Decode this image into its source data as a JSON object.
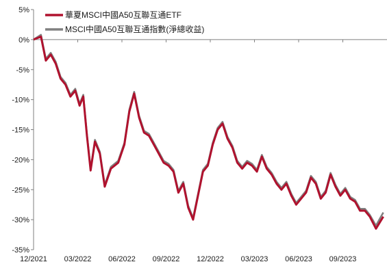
{
  "chart_data": {
    "type": "line",
    "title": "",
    "xlabel": "",
    "ylabel": "",
    "ylim": [
      -35,
      5
    ],
    "y_ticks": [
      5,
      0,
      -5,
      -10,
      -15,
      -20,
      -25,
      -30,
      -35
    ],
    "y_tick_labels": [
      "5%",
      "0%",
      "-5%",
      "-10%",
      "-15%",
      "-20%",
      "-25%",
      "-30%",
      "-35%"
    ],
    "x_tick_labels": [
      "12/2021",
      "03/2022",
      "06/2022",
      "09/2022",
      "12/2022",
      "03/2023",
      "06/2023",
      "09/2023"
    ],
    "x_range_months": [
      "12/2021",
      "11/2023"
    ],
    "grid": false,
    "legend_position": "top-left",
    "series": [
      {
        "name": "華夏MSCI中國A50互聯互通ETF",
        "color": "#b0122e",
        "x": [
          "12/2021",
          "12/2021",
          "12/2021",
          "01/2022",
          "01/2022",
          "01/2022",
          "02/2022",
          "02/2022",
          "02/2022",
          "03/2022",
          "03/2022",
          "03/2022",
          "03/2022",
          "04/2022",
          "04/2022",
          "04/2022",
          "05/2022",
          "05/2022",
          "06/2022",
          "06/2022",
          "06/2022",
          "07/2022",
          "07/2022",
          "07/2022",
          "08/2022",
          "08/2022",
          "08/2022",
          "09/2022",
          "09/2022",
          "09/2022",
          "10/2022",
          "10/2022",
          "10/2022",
          "11/2022",
          "11/2022",
          "11/2022",
          "12/2022",
          "12/2022",
          "12/2022",
          "01/2023",
          "01/2023",
          "01/2023",
          "02/2023",
          "02/2023",
          "02/2023",
          "03/2023",
          "03/2023",
          "03/2023",
          "04/2023",
          "04/2023",
          "04/2023",
          "05/2023",
          "05/2023",
          "05/2023",
          "06/2023",
          "06/2023",
          "06/2023",
          "07/2023",
          "07/2023",
          "07/2023",
          "08/2023",
          "08/2023",
          "08/2023",
          "09/2023",
          "09/2023",
          "09/2023",
          "10/2023",
          "10/2023",
          "10/2023",
          "11/2023",
          "11/2023"
        ],
        "values": [
          0.0,
          0.5,
          -3.5,
          -2.5,
          -4.0,
          -6.5,
          -7.5,
          -9.5,
          -8.5,
          -11.0,
          -9.5,
          -16.0,
          -21.8,
          -17.0,
          -19.0,
          -24.5,
          -21.5,
          -20.5,
          -17.5,
          -12.0,
          -9.0,
          -13.0,
          -15.5,
          -16.0,
          -17.5,
          -19.0,
          -20.5,
          -21.0,
          -22.0,
          -25.5,
          -24.0,
          -28.0,
          -30.0,
          -26.0,
          -22.0,
          -21.0,
          -17.5,
          -15.0,
          -14.0,
          -16.5,
          -18.0,
          -20.5,
          -21.5,
          -20.5,
          -21.0,
          -22.0,
          -19.5,
          -21.5,
          -22.5,
          -24.0,
          -25.0,
          -24.0,
          -26.0,
          -27.5,
          -26.5,
          -25.5,
          -23.0,
          -24.0,
          -26.5,
          -25.5,
          -22.5,
          -24.5,
          -26.0,
          -25.0,
          -26.5,
          -27.0,
          -28.5,
          -28.5,
          -29.5,
          -31.5,
          -29.5
        ]
      },
      {
        "name": "MSCI中國A50互聯互通指數(淨總收益)",
        "color": "#808080",
        "x": [
          "12/2021",
          "12/2021",
          "12/2021",
          "01/2022",
          "01/2022",
          "01/2022",
          "02/2022",
          "02/2022",
          "02/2022",
          "03/2022",
          "03/2022",
          "03/2022",
          "03/2022",
          "04/2022",
          "04/2022",
          "04/2022",
          "05/2022",
          "05/2022",
          "06/2022",
          "06/2022",
          "06/2022",
          "07/2022",
          "07/2022",
          "07/2022",
          "08/2022",
          "08/2022",
          "08/2022",
          "09/2022",
          "09/2022",
          "09/2022",
          "10/2022",
          "10/2022",
          "10/2022",
          "11/2022",
          "11/2022",
          "11/2022",
          "12/2022",
          "12/2022",
          "12/2022",
          "01/2023",
          "01/2023",
          "01/2023",
          "02/2023",
          "02/2023",
          "02/2023",
          "03/2023",
          "03/2023",
          "03/2023",
          "04/2023",
          "04/2023",
          "04/2023",
          "05/2023",
          "05/2023",
          "05/2023",
          "06/2023",
          "06/2023",
          "06/2023",
          "07/2023",
          "07/2023",
          "07/2023",
          "08/2023",
          "08/2023",
          "08/2023",
          "09/2023",
          "09/2023",
          "09/2023",
          "10/2023",
          "10/2023",
          "10/2023",
          "11/2023",
          "11/2023"
        ],
        "values": [
          0.0,
          0.8,
          -3.2,
          -2.2,
          -3.7,
          -6.2,
          -7.2,
          -9.2,
          -8.2,
          -10.7,
          -9.2,
          -15.7,
          -21.5,
          -16.7,
          -18.7,
          -24.2,
          -21.2,
          -20.2,
          -17.2,
          -11.7,
          -8.7,
          -12.7,
          -15.2,
          -15.7,
          -17.2,
          -18.7,
          -20.2,
          -20.7,
          -21.7,
          -25.2,
          -23.7,
          -27.7,
          -29.7,
          -25.7,
          -21.7,
          -20.7,
          -17.2,
          -14.7,
          -13.7,
          -16.2,
          -17.7,
          -20.2,
          -21.2,
          -20.2,
          -20.7,
          -21.7,
          -19.2,
          -21.2,
          -22.2,
          -23.7,
          -24.7,
          -23.7,
          -25.7,
          -27.2,
          -26.2,
          -25.2,
          -22.7,
          -23.7,
          -26.2,
          -25.2,
          -22.2,
          -24.2,
          -25.7,
          -24.7,
          -26.2,
          -26.7,
          -28.2,
          -28.2,
          -29.2,
          -31.0,
          -28.8
        ]
      }
    ]
  }
}
